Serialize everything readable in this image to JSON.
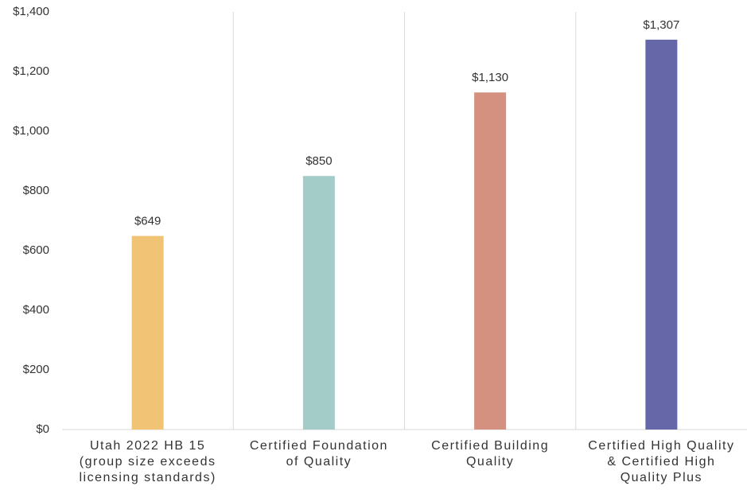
{
  "chart_data": {
    "type": "bar",
    "categories": [
      "Utah 2022 HB 15\n(group size exceeds\nlicensing standards)",
      "Certified Foundation\nof Quality",
      "Certified Building\nQuality",
      "Certified High Quality\n& Certified High\nQuality Plus"
    ],
    "values": [
      649,
      850,
      1130,
      1307
    ],
    "value_labels": [
      "$649",
      "$850",
      "$1,130",
      "$1,307"
    ],
    "colors": [
      "#f0c474",
      "#a3cbc8",
      "#d4917f",
      "#6667a9"
    ],
    "ylim": [
      0,
      1400
    ],
    "yticks": [
      {
        "value": 0,
        "label": "$0"
      },
      {
        "value": 200,
        "label": "$200"
      },
      {
        "value": 400,
        "label": "$400"
      },
      {
        "value": 600,
        "label": "$600"
      },
      {
        "value": 800,
        "label": "$800"
      },
      {
        "value": 1000,
        "label": "$1,000"
      },
      {
        "value": 1200,
        "label": "$1,200"
      },
      {
        "value": 1400,
        "label": "$1,400"
      }
    ]
  }
}
